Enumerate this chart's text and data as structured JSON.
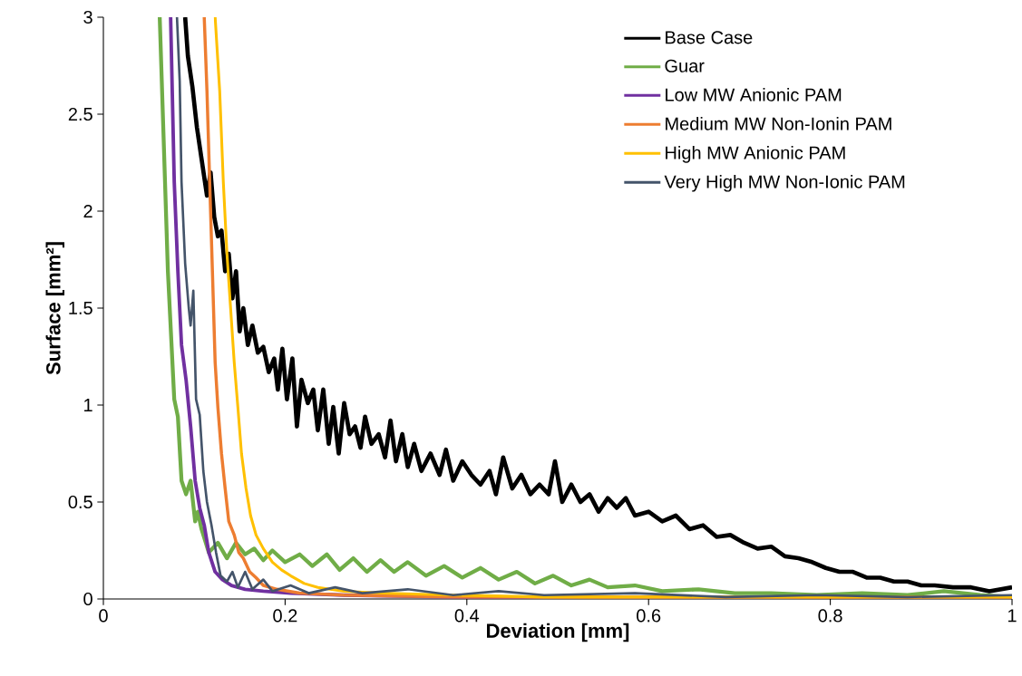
{
  "chart_data": {
    "type": "line",
    "xlabel": "Deviation [mm]",
    "ylabel": "Surface [mm²]",
    "xlim": [
      0,
      1
    ],
    "ylim": [
      0,
      3
    ],
    "xticks": [
      0,
      0.2,
      0.4,
      0.6,
      0.8,
      1
    ],
    "yticks": [
      0,
      0.5,
      1,
      1.5,
      2,
      2.5,
      3
    ],
    "legend": "top right",
    "line_style": "solid",
    "series": [
      {
        "name": "Base Case",
        "color": "#000000",
        "x": [
          0.09,
          0.093,
          0.098,
          0.103,
          0.108,
          0.114,
          0.118,
          0.122,
          0.126,
          0.13,
          0.134,
          0.138,
          0.142,
          0.146,
          0.15,
          0.154,
          0.159,
          0.164,
          0.17,
          0.176,
          0.182,
          0.188,
          0.192,
          0.197,
          0.202,
          0.208,
          0.213,
          0.218,
          0.225,
          0.231,
          0.236,
          0.242,
          0.248,
          0.253,
          0.259,
          0.265,
          0.271,
          0.277,
          0.283,
          0.288,
          0.295,
          0.303,
          0.31,
          0.316,
          0.322,
          0.329,
          0.335,
          0.342,
          0.35,
          0.36,
          0.37,
          0.377,
          0.385,
          0.395,
          0.405,
          0.415,
          0.425,
          0.432,
          0.44,
          0.45,
          0.46,
          0.47,
          0.48,
          0.49,
          0.497,
          0.505,
          0.515,
          0.525,
          0.535,
          0.545,
          0.555,
          0.565,
          0.575,
          0.585,
          0.6,
          0.615,
          0.63,
          0.645,
          0.66,
          0.675,
          0.69,
          0.705,
          0.72,
          0.735,
          0.75,
          0.765,
          0.78,
          0.795,
          0.81,
          0.825,
          0.84,
          0.855,
          0.87,
          0.885,
          0.9,
          0.915,
          0.935,
          0.955,
          0.975,
          1.0
        ],
        "values": [
          3.0,
          2.8,
          2.64,
          2.43,
          2.27,
          2.08,
          2.2,
          1.97,
          1.87,
          1.9,
          1.69,
          1.78,
          1.55,
          1.69,
          1.38,
          1.5,
          1.31,
          1.41,
          1.27,
          1.3,
          1.17,
          1.24,
          1.08,
          1.29,
          1.03,
          1.24,
          0.89,
          1.13,
          1.01,
          1.08,
          0.87,
          1.08,
          0.8,
          0.99,
          0.75,
          1.01,
          0.85,
          0.89,
          0.78,
          0.94,
          0.8,
          0.85,
          0.73,
          0.92,
          0.71,
          0.85,
          0.68,
          0.8,
          0.66,
          0.75,
          0.64,
          0.77,
          0.61,
          0.71,
          0.64,
          0.59,
          0.66,
          0.54,
          0.73,
          0.57,
          0.64,
          0.54,
          0.59,
          0.54,
          0.71,
          0.5,
          0.59,
          0.5,
          0.54,
          0.45,
          0.52,
          0.47,
          0.52,
          0.43,
          0.45,
          0.4,
          0.43,
          0.36,
          0.38,
          0.32,
          0.33,
          0.29,
          0.26,
          0.27,
          0.22,
          0.21,
          0.19,
          0.16,
          0.14,
          0.14,
          0.11,
          0.11,
          0.09,
          0.09,
          0.07,
          0.07,
          0.06,
          0.06,
          0.04,
          0.06
        ]
      },
      {
        "name": "Guar",
        "color": "#70ad47",
        "x": [
          0.062,
          0.071,
          0.078,
          0.082,
          0.086,
          0.091,
          0.096,
          0.101,
          0.104,
          0.108,
          0.116,
          0.126,
          0.136,
          0.146,
          0.156,
          0.166,
          0.176,
          0.186,
          0.2,
          0.216,
          0.23,
          0.246,
          0.26,
          0.275,
          0.29,
          0.305,
          0.32,
          0.335,
          0.355,
          0.375,
          0.395,
          0.415,
          0.435,
          0.455,
          0.475,
          0.495,
          0.515,
          0.535,
          0.555,
          0.585,
          0.615,
          0.655,
          0.695,
          0.735,
          0.785,
          0.835,
          0.885,
          0.925,
          0.965,
          1.0
        ],
        "values": [
          3.0,
          1.69,
          1.03,
          0.94,
          0.61,
          0.54,
          0.61,
          0.4,
          0.45,
          0.36,
          0.24,
          0.29,
          0.21,
          0.29,
          0.23,
          0.26,
          0.2,
          0.25,
          0.19,
          0.23,
          0.17,
          0.23,
          0.15,
          0.21,
          0.14,
          0.2,
          0.14,
          0.19,
          0.12,
          0.17,
          0.11,
          0.16,
          0.1,
          0.14,
          0.08,
          0.12,
          0.07,
          0.1,
          0.06,
          0.07,
          0.04,
          0.05,
          0.03,
          0.03,
          0.02,
          0.03,
          0.02,
          0.04,
          0.02,
          0.01
        ]
      },
      {
        "name": "Low MW Anionic PAM",
        "color": "#7030a0",
        "x": [
          0.074,
          0.078,
          0.082,
          0.086,
          0.091,
          0.096,
          0.101,
          0.106,
          0.111,
          0.116,
          0.123,
          0.131,
          0.141,
          0.156,
          0.176,
          0.206,
          0.265,
          0.385,
          0.585,
          1.0
        ],
        "values": [
          3.0,
          2.15,
          1.69,
          1.31,
          1.13,
          0.89,
          0.61,
          0.47,
          0.38,
          0.24,
          0.14,
          0.1,
          0.07,
          0.05,
          0.04,
          0.03,
          0.02,
          0.01,
          0.01,
          0.01
        ]
      },
      {
        "name": "Medium MW Non-Ionin PAM",
        "color": "#ed7d31",
        "x": [
          0.111,
          0.114,
          0.117,
          0.12,
          0.123,
          0.126,
          0.13,
          0.134,
          0.138,
          0.144,
          0.149,
          0.154,
          0.161,
          0.168,
          0.176,
          0.191,
          0.216,
          0.265,
          0.385,
          0.585,
          1.0
        ],
        "values": [
          3.0,
          2.62,
          2.15,
          1.69,
          1.22,
          0.99,
          0.75,
          0.57,
          0.4,
          0.33,
          0.24,
          0.21,
          0.14,
          0.11,
          0.07,
          0.05,
          0.03,
          0.02,
          0.01,
          0.01,
          0.01
        ]
      },
      {
        "name": "High MW Anionic PAM",
        "color": "#ffc000",
        "x": [
          0.123,
          0.128,
          0.132,
          0.136,
          0.14,
          0.144,
          0.148,
          0.152,
          0.157,
          0.162,
          0.168,
          0.176,
          0.186,
          0.196,
          0.206,
          0.221,
          0.236,
          0.265,
          0.305,
          0.385,
          0.485,
          0.685,
          1.0
        ],
        "values": [
          3.0,
          2.62,
          2.15,
          1.78,
          1.5,
          1.22,
          0.99,
          0.75,
          0.57,
          0.43,
          0.33,
          0.26,
          0.19,
          0.15,
          0.12,
          0.08,
          0.06,
          0.04,
          0.03,
          0.02,
          0.01,
          0.01,
          0.01
        ]
      },
      {
        "name": "Very High MW Non-Ionic PAM",
        "color": "#44546a",
        "x": [
          0.081,
          0.084,
          0.086,
          0.09,
          0.094,
          0.096,
          0.099,
          0.102,
          0.106,
          0.11,
          0.114,
          0.119,
          0.124,
          0.129,
          0.136,
          0.142,
          0.148,
          0.156,
          0.164,
          0.176,
          0.186,
          0.206,
          0.226,
          0.255,
          0.285,
          0.335,
          0.385,
          0.435,
          0.485,
          0.585,
          0.685,
          0.785,
          0.885,
          1.0
        ],
        "values": [
          3.0,
          2.67,
          2.15,
          1.73,
          1.5,
          1.41,
          1.59,
          1.03,
          0.95,
          0.66,
          0.5,
          0.38,
          0.24,
          0.12,
          0.09,
          0.14,
          0.06,
          0.14,
          0.05,
          0.1,
          0.04,
          0.07,
          0.03,
          0.06,
          0.03,
          0.05,
          0.02,
          0.04,
          0.02,
          0.03,
          0.01,
          0.02,
          0.01,
          0.02
        ]
      }
    ]
  }
}
